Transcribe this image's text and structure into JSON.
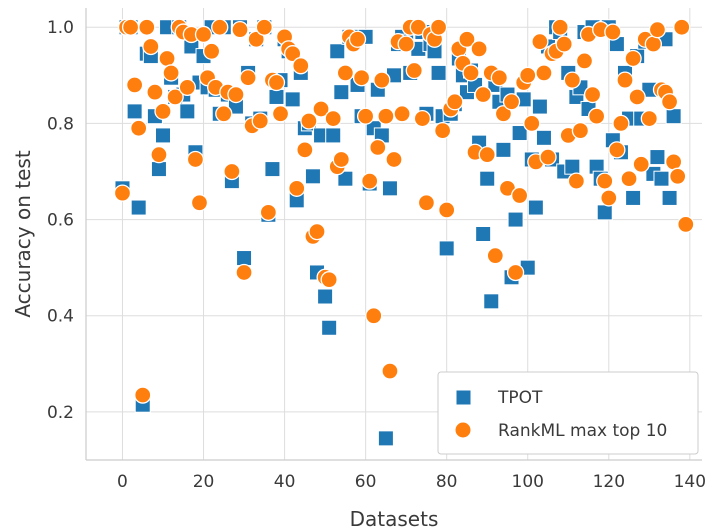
{
  "chart_data": {
    "type": "scatter",
    "xlabel": "Datasets",
    "ylabel": "Accuracy on test",
    "xlim": [
      -9,
      143
    ],
    "ylim": [
      0.1,
      1.04
    ],
    "xticks": [
      0,
      20,
      40,
      60,
      80,
      100,
      120,
      140
    ],
    "yticks": [
      0.2,
      0.4,
      0.6,
      0.8,
      1.0
    ],
    "xtick_labels": [
      "0",
      "20",
      "40",
      "60",
      "80",
      "100",
      "120",
      "140"
    ],
    "ytick_labels": [
      "0.2",
      "0.4",
      "0.6",
      "0.8",
      "1.0"
    ],
    "grid": true,
    "legend_position": "bottom-right",
    "series": [
      {
        "name": "TPOT",
        "marker": "square",
        "color": "#1f77b4",
        "points": [
          [
            0,
            0.665
          ],
          [
            1,
            1.0
          ],
          [
            2,
            1.0
          ],
          [
            3,
            0.825
          ],
          [
            4,
            0.625
          ],
          [
            5,
            0.215
          ],
          [
            6,
            0.945
          ],
          [
            7,
            0.94
          ],
          [
            8,
            0.815
          ],
          [
            9,
            0.705
          ],
          [
            10,
            0.775
          ],
          [
            11,
            1.0
          ],
          [
            12,
            0.895
          ],
          [
            13,
            0.855
          ],
          [
            14,
            1.0
          ],
          [
            15,
            0.86
          ],
          [
            16,
            0.825
          ],
          [
            17,
            0.96
          ],
          [
            18,
            0.74
          ],
          [
            19,
            0.885
          ],
          [
            20,
            0.94
          ],
          [
            21,
            0.875
          ],
          [
            22,
            1.0
          ],
          [
            23,
            0.87
          ],
          [
            24,
            0.82
          ],
          [
            25,
            1.0
          ],
          [
            26,
            0.86
          ],
          [
            27,
            0.68
          ],
          [
            28,
            0.835
          ],
          [
            29,
            1.0
          ],
          [
            30,
            0.52
          ],
          [
            31,
            0.905
          ],
          [
            32,
            0.8
          ],
          [
            33,
            0.975
          ],
          [
            34,
            0.81
          ],
          [
            35,
            1.0
          ],
          [
            36,
            0.61
          ],
          [
            37,
            0.705
          ],
          [
            38,
            0.855
          ],
          [
            39,
            0.89
          ],
          [
            40,
            0.975
          ],
          [
            41,
            0.95
          ],
          [
            42,
            0.85
          ],
          [
            43,
            0.64
          ],
          [
            44,
            0.905
          ],
          [
            45,
            0.79
          ],
          [
            46,
            0.8
          ],
          [
            47,
            0.69
          ],
          [
            48,
            0.49
          ],
          [
            49,
            0.775
          ],
          [
            50,
            0.44
          ],
          [
            51,
            0.375
          ],
          [
            52,
            0.775
          ],
          [
            53,
            0.95
          ],
          [
            54,
            0.865
          ],
          [
            55,
            0.685
          ],
          [
            56,
            0.98
          ],
          [
            57,
            0.98
          ],
          [
            58,
            0.88
          ],
          [
            59,
            0.815
          ],
          [
            60,
            0.98
          ],
          [
            61,
            0.675
          ],
          [
            62,
            0.79
          ],
          [
            63,
            0.87
          ],
          [
            64,
            0.775
          ],
          [
            65,
            0.145
          ],
          [
            66,
            0.665
          ],
          [
            67,
            0.9
          ],
          [
            68,
            0.965
          ],
          [
            69,
            0.98
          ],
          [
            70,
            0.97
          ],
          [
            71,
            0.905
          ],
          [
            72,
            1.0
          ],
          [
            73,
            0.955
          ],
          [
            74,
            0.99
          ],
          [
            75,
            0.82
          ],
          [
            76,
            0.965
          ],
          [
            77,
            0.95
          ],
          [
            78,
            0.905
          ],
          [
            79,
            0.815
          ],
          [
            80,
            0.54
          ],
          [
            81,
            0.82
          ],
          [
            82,
            0.84
          ],
          [
            83,
            0.935
          ],
          [
            84,
            0.9
          ],
          [
            85,
            0.865
          ],
          [
            86,
            0.91
          ],
          [
            87,
            0.88
          ],
          [
            88,
            0.76
          ],
          [
            89,
            0.57
          ],
          [
            90,
            0.685
          ],
          [
            91,
            0.43
          ],
          [
            92,
            0.88
          ],
          [
            93,
            0.845
          ],
          [
            94,
            0.745
          ],
          [
            95,
            0.86
          ],
          [
            96,
            0.48
          ],
          [
            97,
            0.6
          ],
          [
            98,
            0.78
          ],
          [
            99,
            0.85
          ],
          [
            100,
            0.5
          ],
          [
            101,
            0.725
          ],
          [
            102,
            0.625
          ],
          [
            103,
            0.835
          ],
          [
            104,
            0.77
          ],
          [
            105,
            0.96
          ],
          [
            106,
            0.725
          ],
          [
            107,
            1.0
          ],
          [
            108,
            0.99
          ],
          [
            109,
            0.7
          ],
          [
            110,
            0.905
          ],
          [
            111,
            0.71
          ],
          [
            112,
            0.855
          ],
          [
            113,
            0.875
          ],
          [
            114,
            0.99
          ],
          [
            115,
            0.83
          ],
          [
            116,
            1.0
          ],
          [
            117,
            0.71
          ],
          [
            118,
            0.685
          ],
          [
            119,
            0.615
          ],
          [
            120,
            1.0
          ],
          [
            121,
            0.765
          ],
          [
            122,
            0.965
          ],
          [
            123,
            0.74
          ],
          [
            124,
            0.905
          ],
          [
            125,
            0.81
          ],
          [
            126,
            0.645
          ],
          [
            127,
            0.94
          ],
          [
            128,
            0.81
          ],
          [
            129,
            0.97
          ],
          [
            130,
            0.87
          ],
          [
            131,
            0.695
          ],
          [
            132,
            0.73
          ],
          [
            133,
            0.685
          ],
          [
            134,
            0.975
          ],
          [
            135,
            0.645
          ],
          [
            136,
            0.815
          ]
        ]
      },
      {
        "name": "RankML max top 10",
        "marker": "circle",
        "color": "#ff7f0e",
        "points": [
          [
            0,
            0.655
          ],
          [
            1,
            1.0
          ],
          [
            2,
            1.0
          ],
          [
            3,
            0.88
          ],
          [
            4,
            0.79
          ],
          [
            5,
            0.235
          ],
          [
            6,
            1.0
          ],
          [
            7,
            0.96
          ],
          [
            8,
            0.865
          ],
          [
            9,
            0.735
          ],
          [
            10,
            0.825
          ],
          [
            11,
            0.935
          ],
          [
            12,
            0.905
          ],
          [
            13,
            0.855
          ],
          [
            14,
            1.0
          ],
          [
            15,
            0.99
          ],
          [
            16,
            0.875
          ],
          [
            17,
            0.985
          ],
          [
            18,
            0.725
          ],
          [
            19,
            0.635
          ],
          [
            20,
            0.985
          ],
          [
            21,
            0.895
          ],
          [
            22,
            0.95
          ],
          [
            23,
            0.875
          ],
          [
            24,
            1.0
          ],
          [
            25,
            0.82
          ],
          [
            26,
            0.865
          ],
          [
            27,
            0.7
          ],
          [
            28,
            0.86
          ],
          [
            29,
            0.995
          ],
          [
            30,
            0.49
          ],
          [
            31,
            0.895
          ],
          [
            32,
            0.795
          ],
          [
            33,
            0.975
          ],
          [
            34,
            0.805
          ],
          [
            35,
            1.0
          ],
          [
            36,
            0.615
          ],
          [
            37,
            0.89
          ],
          [
            38,
            0.885
          ],
          [
            39,
            0.82
          ],
          [
            40,
            0.98
          ],
          [
            41,
            0.955
          ],
          [
            42,
            0.945
          ],
          [
            43,
            0.665
          ],
          [
            44,
            0.92
          ],
          [
            45,
            0.745
          ],
          [
            46,
            0.805
          ],
          [
            47,
            0.565
          ],
          [
            48,
            0.575
          ],
          [
            49,
            0.83
          ],
          [
            50,
            0.48
          ],
          [
            51,
            0.475
          ],
          [
            52,
            0.81
          ],
          [
            53,
            0.71
          ],
          [
            54,
            0.725
          ],
          [
            55,
            0.905
          ],
          [
            56,
            0.98
          ],
          [
            57,
            0.965
          ],
          [
            58,
            0.975
          ],
          [
            59,
            0.895
          ],
          [
            60,
            0.815
          ],
          [
            61,
            0.68
          ],
          [
            62,
            0.4
          ],
          [
            63,
            0.75
          ],
          [
            64,
            0.89
          ],
          [
            65,
            0.815
          ],
          [
            66,
            0.285
          ],
          [
            67,
            0.725
          ],
          [
            68,
            0.97
          ],
          [
            69,
            0.82
          ],
          [
            70,
            0.965
          ],
          [
            71,
            1.0
          ],
          [
            72,
            0.91
          ],
          [
            73,
            1.0
          ],
          [
            74,
            0.81
          ],
          [
            75,
            0.635
          ],
          [
            76,
            0.985
          ],
          [
            77,
            0.975
          ],
          [
            78,
            1.0
          ],
          [
            79,
            0.785
          ],
          [
            80,
            0.62
          ],
          [
            81,
            0.83
          ],
          [
            82,
            0.845
          ],
          [
            83,
            0.955
          ],
          [
            84,
            0.925
          ],
          [
            85,
            0.975
          ],
          [
            86,
            0.905
          ],
          [
            87,
            0.74
          ],
          [
            88,
            0.955
          ],
          [
            89,
            0.86
          ],
          [
            90,
            0.735
          ],
          [
            91,
            0.905
          ],
          [
            92,
            0.525
          ],
          [
            93,
            0.895
          ],
          [
            94,
            0.82
          ],
          [
            95,
            0.665
          ],
          [
            96,
            0.845
          ],
          [
            97,
            0.49
          ],
          [
            98,
            0.65
          ],
          [
            99,
            0.885
          ],
          [
            100,
            0.9
          ],
          [
            101,
            0.8
          ],
          [
            102,
            0.72
          ],
          [
            103,
            0.97
          ],
          [
            104,
            0.905
          ],
          [
            105,
            0.73
          ],
          [
            106,
            0.945
          ],
          [
            107,
            0.95
          ],
          [
            108,
            1.0
          ],
          [
            109,
            0.965
          ],
          [
            110,
            0.775
          ],
          [
            111,
            0.89
          ],
          [
            112,
            0.68
          ],
          [
            113,
            0.785
          ],
          [
            114,
            0.93
          ],
          [
            115,
            0.985
          ],
          [
            116,
            0.86
          ],
          [
            117,
            0.815
          ],
          [
            118,
            0.995
          ],
          [
            119,
            0.68
          ],
          [
            120,
            0.645
          ],
          [
            121,
            0.99
          ],
          [
            122,
            0.745
          ],
          [
            123,
            0.8
          ],
          [
            124,
            0.89
          ],
          [
            125,
            0.685
          ],
          [
            126,
            0.935
          ],
          [
            127,
            0.855
          ],
          [
            128,
            0.715
          ],
          [
            129,
            0.975
          ],
          [
            130,
            0.81
          ],
          [
            131,
            0.965
          ],
          [
            132,
            0.995
          ],
          [
            133,
            0.87
          ],
          [
            134,
            0.865
          ],
          [
            135,
            0.845
          ],
          [
            136,
            0.72
          ],
          [
            137,
            0.69
          ],
          [
            138,
            1.0
          ],
          [
            139,
            0.59
          ]
        ]
      }
    ]
  }
}
